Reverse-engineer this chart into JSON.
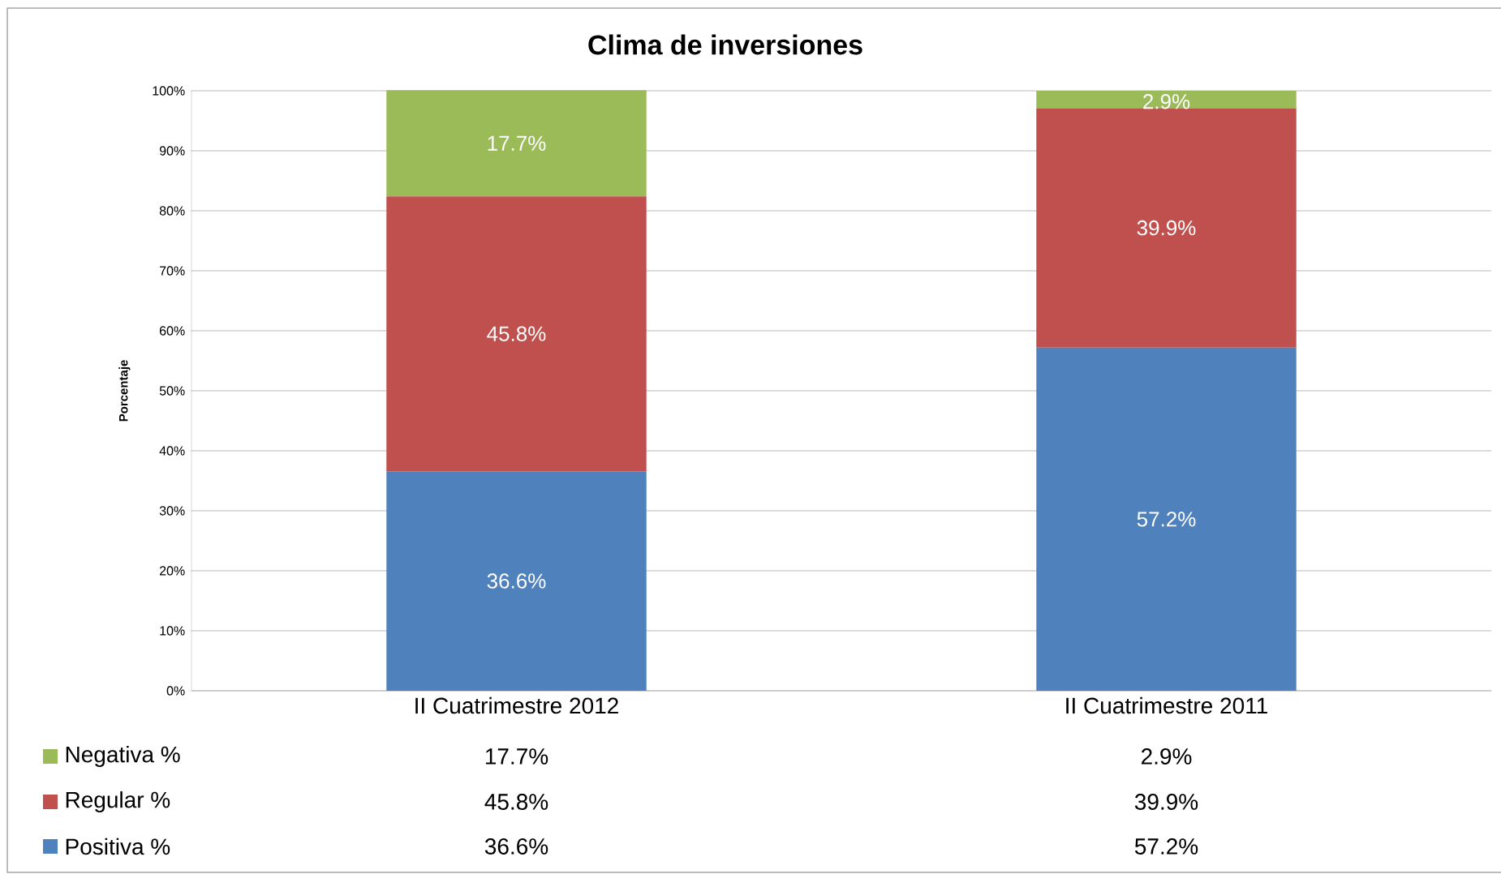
{
  "chart_data": {
    "type": "bar",
    "title": "Clima de inversiones",
    "ylabel": "Porcentaje",
    "categories": [
      "II Cuatrimestre 2012",
      "II Cuatrimestre 2011"
    ],
    "stacked": true,
    "series": [
      {
        "name": "Positiva %",
        "color": "#4f81bd",
        "values": [
          36.6,
          57.2
        ],
        "value_labels": [
          "36.6%",
          "57.2%"
        ]
      },
      {
        "name": "Regular %",
        "color": "#c0504d",
        "values": [
          45.8,
          39.9
        ],
        "value_labels": [
          "45.8%",
          "39.9%"
        ]
      },
      {
        "name": "Negativa %",
        "color": "#9bbb59",
        "values": [
          17.7,
          2.9
        ],
        "value_labels": [
          "17.7%",
          "2.9%"
        ]
      }
    ],
    "ylim": [
      0,
      100
    ],
    "yticks": [
      {
        "value": 0,
        "label": "0%"
      },
      {
        "value": 10,
        "label": "10%"
      },
      {
        "value": 20,
        "label": "20%"
      },
      {
        "value": 30,
        "label": "30%"
      },
      {
        "value": 40,
        "label": "40%"
      },
      {
        "value": 50,
        "label": "50%"
      },
      {
        "value": 60,
        "label": "60%"
      },
      {
        "value": 70,
        "label": "70%"
      },
      {
        "value": 80,
        "label": "80%"
      },
      {
        "value": 90,
        "label": "90%"
      },
      {
        "value": 100,
        "label": "100%"
      }
    ],
    "grid": "y",
    "legend": "bottom left"
  }
}
